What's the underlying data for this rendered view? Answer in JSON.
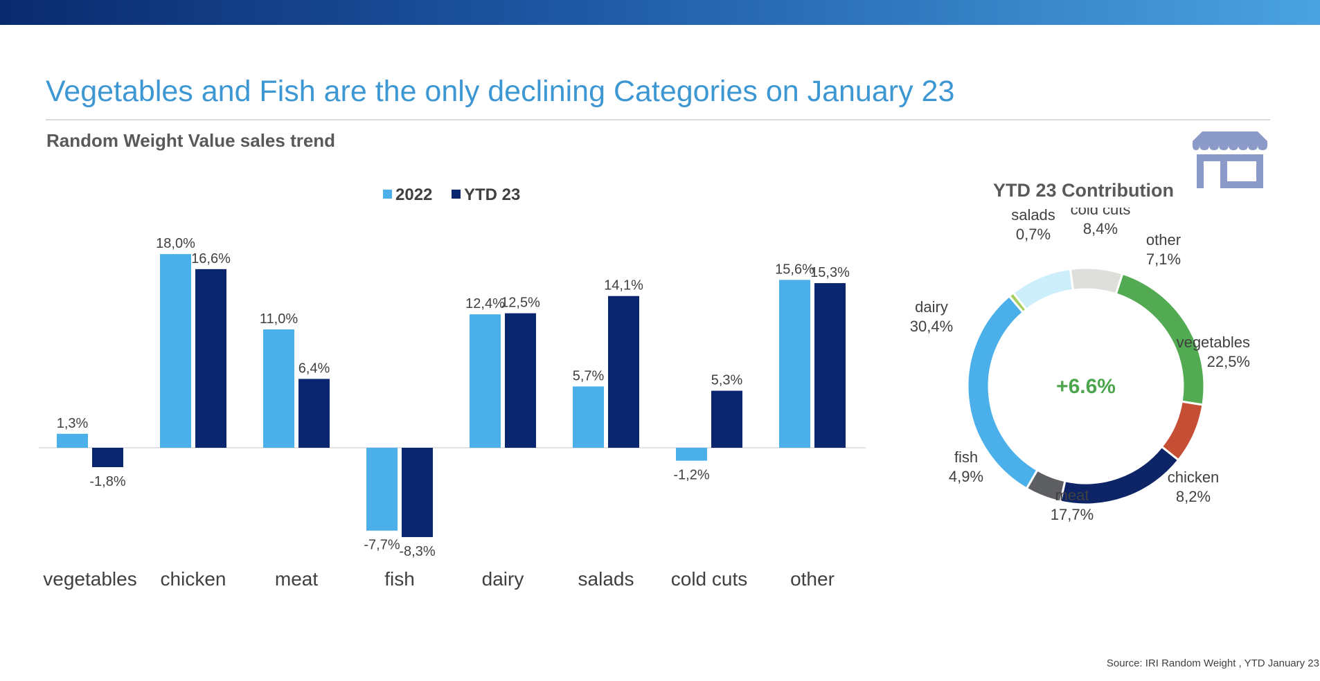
{
  "slide": {
    "title": "Vegetables and Fish are the only declining Categories on January 23",
    "subtitle": "Random Weight Value sales trend",
    "donut_title": "YTD 23 Contribution",
    "donut_center": "+6.6%",
    "source": "Source: IRI Random Weight , YTD January 23",
    "icon": "store-icon"
  },
  "colors": {
    "accent": "#3d97d3",
    "series_2022": "#4bb0ea",
    "series_ytd23": "#0b2670",
    "center_value": "#4da64d"
  },
  "chart_data": [
    {
      "type": "bar",
      "title": "",
      "categories": [
        "vegetables",
        "chicken",
        "meat",
        "fish",
        "dairy",
        "salads",
        "cold cuts",
        "other"
      ],
      "series": [
        {
          "name": "2022",
          "color": "#4bb0ea",
          "values": [
            1.3,
            18.0,
            11.0,
            -7.7,
            12.4,
            5.7,
            -1.2,
            15.6
          ],
          "labels": [
            "1,3%",
            "18,0%",
            "11,0%",
            "-7,7%",
            "12,4%",
            "5,7%",
            "-1,2%",
            "15,6%"
          ]
        },
        {
          "name": "YTD 23",
          "color": "#0b2670",
          "values": [
            -1.8,
            16.6,
            6.4,
            -8.3,
            12.5,
            14.1,
            5.3,
            15.3
          ],
          "labels": [
            "-1,8%",
            "16,6%",
            "6,4%",
            "-8,3%",
            "12,5%",
            "14,1%",
            "5,3%",
            "15,3%"
          ]
        }
      ],
      "legend": "top-center",
      "grid": false
    },
    {
      "type": "pie",
      "title": "YTD 23 Contribution",
      "variant": "donut",
      "slices": [
        {
          "label": "vegetables",
          "value_text": "22,5%",
          "value": 22.5,
          "color": "#52ab52"
        },
        {
          "label": "chicken",
          "value_text": "8,2%",
          "value": 8.2,
          "color": "#c54e35"
        },
        {
          "label": "meat",
          "value_text": "17,7%",
          "value": 17.7,
          "color": "#0d2467"
        },
        {
          "label": "fish",
          "value_text": "4,9%",
          "value": 4.9,
          "color": "#5d5f63"
        },
        {
          "label": "dairy",
          "value_text": "30,4%",
          "value": 30.4,
          "color": "#4bb0ea"
        },
        {
          "label": "salads",
          "value_text": "0,7%",
          "value": 0.7,
          "color": "#a6cf5e"
        },
        {
          "label": "cold cuts",
          "value_text": "8,4%",
          "value": 8.4,
          "color": "#cdeefb"
        },
        {
          "label": "other",
          "value_text": "7,1%",
          "value": 7.1,
          "color": "#dededb"
        }
      ]
    }
  ]
}
